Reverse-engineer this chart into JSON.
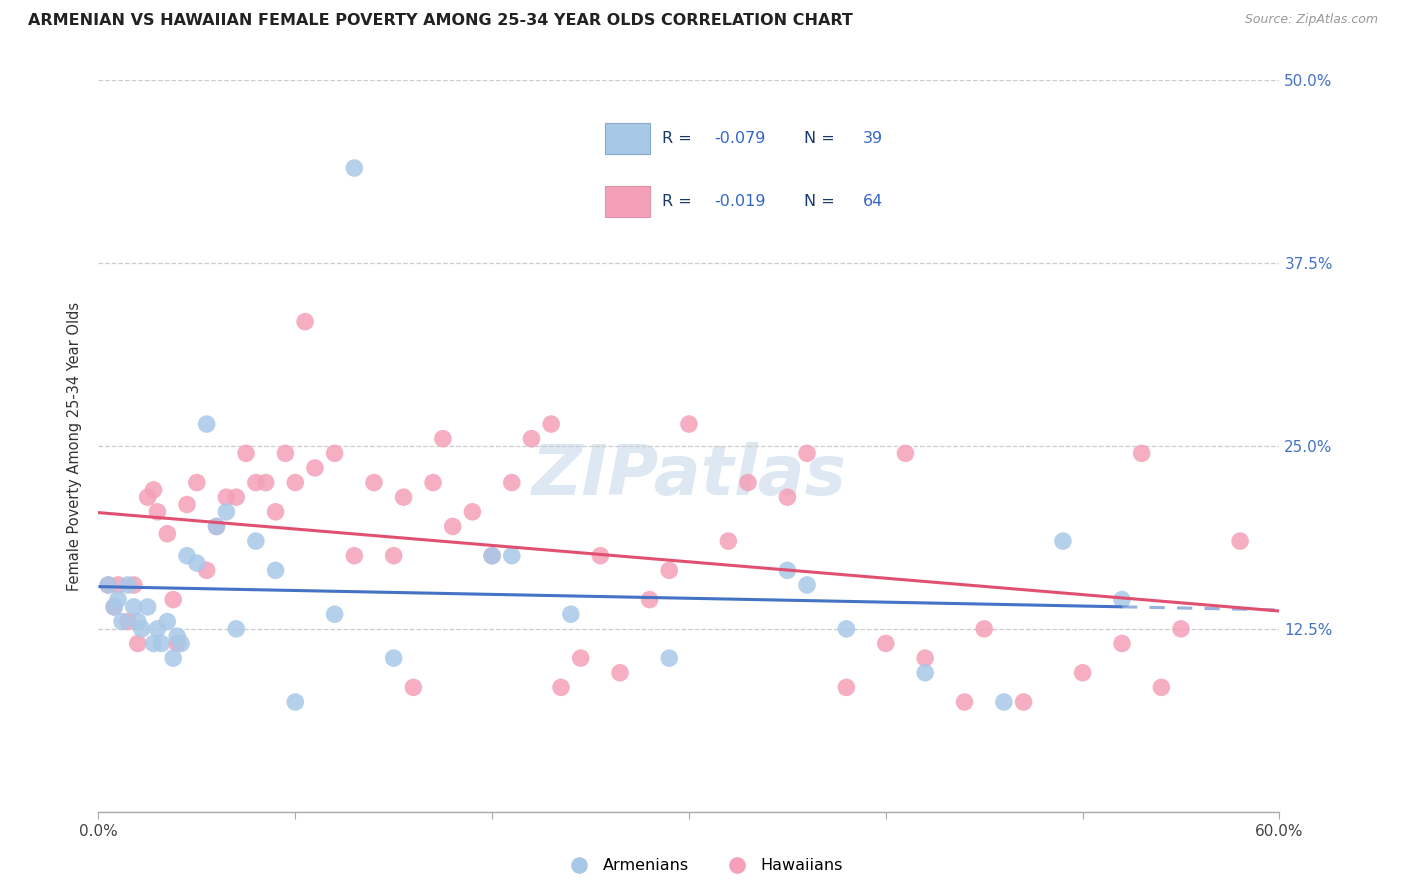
{
  "title": "ARMENIAN VS HAWAIIAN FEMALE POVERTY AMONG 25-34 YEAR OLDS CORRELATION CHART",
  "source": "Source: ZipAtlas.com",
  "ylabel": "Female Poverty Among 25-34 Year Olds",
  "xlim": [
    0.0,
    0.6
  ],
  "ylim": [
    0.0,
    0.5
  ],
  "ytick_positions": [
    0.0,
    0.125,
    0.25,
    0.375,
    0.5
  ],
  "color_armenian": "#a8c8e8",
  "color_hawaiian": "#f4a0b8",
  "color_armenian_line": "#4472c4",
  "color_hawaiian_line": "#e05070",
  "legend_label_armenians": "Armenians",
  "legend_label_hawaiians": "Hawaiians",
  "R_armenian": -0.079,
  "N_armenian": 39,
  "R_hawaiian": -0.019,
  "N_hawaiian": 64,
  "armenian_x": [
    0.005,
    0.008,
    0.01,
    0.012,
    0.015,
    0.018,
    0.02,
    0.022,
    0.025,
    0.028,
    0.03,
    0.032,
    0.035,
    0.038,
    0.04,
    0.042,
    0.045,
    0.05,
    0.055,
    0.06,
    0.065,
    0.07,
    0.08,
    0.09,
    0.1,
    0.12,
    0.13,
    0.15,
    0.2,
    0.21,
    0.24,
    0.29,
    0.35,
    0.36,
    0.38,
    0.42,
    0.46,
    0.49,
    0.52
  ],
  "armenian_y": [
    0.155,
    0.14,
    0.145,
    0.13,
    0.155,
    0.14,
    0.13,
    0.125,
    0.14,
    0.115,
    0.125,
    0.115,
    0.13,
    0.105,
    0.12,
    0.115,
    0.175,
    0.17,
    0.265,
    0.195,
    0.205,
    0.125,
    0.185,
    0.165,
    0.075,
    0.135,
    0.44,
    0.105,
    0.175,
    0.175,
    0.135,
    0.105,
    0.165,
    0.155,
    0.125,
    0.095,
    0.075,
    0.185,
    0.145
  ],
  "hawaiian_x": [
    0.005,
    0.008,
    0.01,
    0.015,
    0.018,
    0.02,
    0.025,
    0.028,
    0.03,
    0.035,
    0.038,
    0.04,
    0.045,
    0.05,
    0.055,
    0.06,
    0.065,
    0.07,
    0.075,
    0.08,
    0.085,
    0.09,
    0.095,
    0.1,
    0.105,
    0.11,
    0.12,
    0.13,
    0.14,
    0.15,
    0.155,
    0.16,
    0.17,
    0.175,
    0.18,
    0.19,
    0.2,
    0.21,
    0.22,
    0.23,
    0.235,
    0.245,
    0.255,
    0.265,
    0.28,
    0.29,
    0.3,
    0.32,
    0.33,
    0.35,
    0.36,
    0.38,
    0.4,
    0.41,
    0.42,
    0.44,
    0.45,
    0.47,
    0.5,
    0.52,
    0.53,
    0.54,
    0.55,
    0.58
  ],
  "hawaiian_y": [
    0.155,
    0.14,
    0.155,
    0.13,
    0.155,
    0.115,
    0.215,
    0.22,
    0.205,
    0.19,
    0.145,
    0.115,
    0.21,
    0.225,
    0.165,
    0.195,
    0.215,
    0.215,
    0.245,
    0.225,
    0.225,
    0.205,
    0.245,
    0.225,
    0.335,
    0.235,
    0.245,
    0.175,
    0.225,
    0.175,
    0.215,
    0.085,
    0.225,
    0.255,
    0.195,
    0.205,
    0.175,
    0.225,
    0.255,
    0.265,
    0.085,
    0.105,
    0.175,
    0.095,
    0.145,
    0.165,
    0.265,
    0.185,
    0.225,
    0.215,
    0.245,
    0.085,
    0.115,
    0.245,
    0.105,
    0.075,
    0.125,
    0.075,
    0.095,
    0.115,
    0.245,
    0.085,
    0.125,
    0.185
  ]
}
